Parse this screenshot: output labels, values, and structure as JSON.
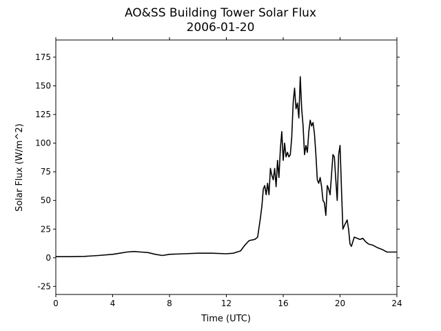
{
  "chart_data": {
    "type": "line",
    "title": "AO&SS Building Tower Solar Flux",
    "subtitle": "2006-01-20",
    "x_label": "Time (UTC)",
    "y_label": "Solar Flux (W/m^2)",
    "xlim": [
      0,
      24
    ],
    "xticks": [
      0,
      4,
      8,
      12,
      16,
      20,
      24
    ],
    "ylim": [
      -32,
      190
    ],
    "yticks": [
      -25,
      0,
      25,
      50,
      75,
      100,
      125,
      150,
      175
    ],
    "series": [
      {
        "color": "#000000",
        "x": [
          0,
          1,
          2,
          3,
          4,
          4.5,
          5,
          5.5,
          6,
          6.5,
          7,
          7.5,
          8,
          9,
          10,
          11,
          12,
          12.5,
          13,
          13.3,
          13.6,
          14,
          14.2,
          14.4,
          14.5,
          14.6,
          14.7,
          14.8,
          14.9,
          15,
          15.1,
          15.2,
          15.3,
          15.4,
          15.5,
          15.6,
          15.7,
          15.8,
          15.9,
          16,
          16.1,
          16.2,
          16.3,
          16.4,
          16.5,
          16.6,
          16.7,
          16.8,
          16.9,
          17,
          17.1,
          17.2,
          17.3,
          17.4,
          17.5,
          17.6,
          17.7,
          17.8,
          17.9,
          18,
          18.1,
          18.2,
          18.3,
          18.4,
          18.5,
          18.6,
          18.7,
          18.8,
          18.9,
          19,
          19.1,
          19.2,
          19.3,
          19.5,
          19.6,
          19.7,
          19.8,
          19.9,
          20,
          20.1,
          20.2,
          20.3,
          20.5,
          20.6,
          20.7,
          20.8,
          21,
          21.2,
          21.4,
          21.6,
          21.8,
          22,
          22.3,
          22.6,
          23,
          23.3,
          24
        ],
        "values": [
          1,
          1,
          1.2,
          2,
          3,
          4,
          5,
          5.5,
          5,
          4.5,
          3,
          2,
          3,
          3.5,
          4,
          4,
          3.5,
          4,
          6,
          11,
          15,
          16,
          18,
          35,
          45,
          60,
          63,
          55,
          65,
          55,
          78,
          72,
          68,
          78,
          62,
          85,
          70,
          95,
          110,
          85,
          100,
          88,
          92,
          88,
          90,
          105,
          135,
          148,
          130,
          135,
          122,
          158,
          130,
          115,
          90,
          98,
          92,
          110,
          120,
          115,
          118,
          108,
          90,
          68,
          65,
          70,
          62,
          50,
          48,
          37,
          63,
          60,
          55,
          90,
          88,
          68,
          50,
          90,
          98,
          60,
          25,
          28,
          33,
          25,
          12,
          10,
          18,
          17,
          16,
          17,
          14,
          12,
          11,
          9,
          7,
          5,
          5
        ]
      }
    ]
  }
}
